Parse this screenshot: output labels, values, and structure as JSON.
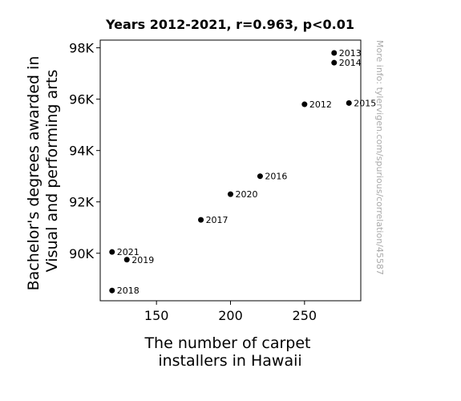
{
  "chart_data": {
    "type": "scatter",
    "title": "Years 2012-2021, r=0.963, p<0.01",
    "xlabel_lines": [
      "The number of carpet",
      "installers in Hawaii"
    ],
    "ylabel_lines": [
      "Bachelor's degrees awarded in",
      "Visual and performing arts"
    ],
    "xlim": [
      112,
      288
    ],
    "ylim": [
      88150,
      98300
    ],
    "xticks": [
      150,
      200,
      250
    ],
    "xtick_labels": [
      "150",
      "200",
      "250"
    ],
    "yticks": [
      90000,
      92000,
      94000,
      96000,
      98000
    ],
    "ytick_labels": [
      "90K",
      "92K",
      "94K",
      "96K",
      "98K"
    ],
    "grid": false,
    "marker_color": "#000000",
    "points": [
      {
        "label": "2012",
        "x": 250,
        "y": 95800
      },
      {
        "label": "2013",
        "x": 270,
        "y": 97800
      },
      {
        "label": "2014",
        "x": 270,
        "y": 97420
      },
      {
        "label": "2015",
        "x": 280,
        "y": 95850
      },
      {
        "label": "2016",
        "x": 220,
        "y": 93000
      },
      {
        "label": "2017",
        "x": 180,
        "y": 91300
      },
      {
        "label": "2018",
        "x": 120,
        "y": 88550
      },
      {
        "label": "2019",
        "x": 130,
        "y": 89750
      },
      {
        "label": "2020",
        "x": 200,
        "y": 92300
      },
      {
        "label": "2021",
        "x": 120,
        "y": 90050
      }
    ],
    "watermark": "More info: tylervigen.com/spurious/correlation/45587"
  }
}
